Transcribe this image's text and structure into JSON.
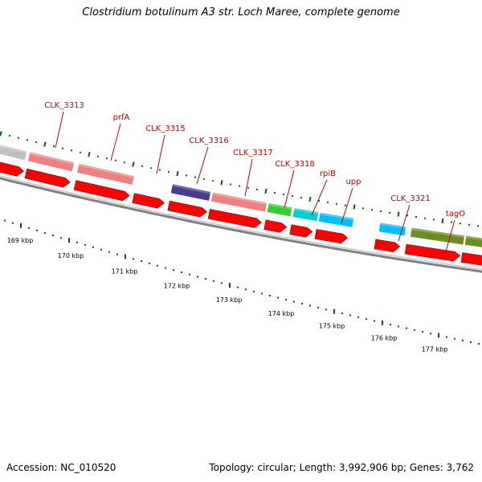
{
  "title": "Clostridium botulinum A3 str. Loch Maree, complete genome",
  "footer": {
    "accession": "Accession: NC_010520",
    "topology": "Topology: circular; Length: 3,992,906 bp; Genes: 3,762"
  },
  "colors": {
    "backbone": "#808080",
    "cds_arrows": "#ff0000",
    "tick_marks": "#006400",
    "gene_labels": "#cc0000"
  },
  "scale": {
    "unit": "kbp",
    "ticks": [
      169,
      170,
      171,
      172,
      173,
      174,
      175,
      176,
      177
    ]
  },
  "genes": [
    {
      "id": "gene-unlabeled-1",
      "name": "",
      "color": "#c0c0c0"
    },
    {
      "id": "gene-clk3313",
      "name": "CLK_3313",
      "color": "#f08080"
    },
    {
      "id": "gene-prfa",
      "name": "prfA",
      "color": "#f08080"
    },
    {
      "id": "gene-clk3315",
      "name": "CLK_3315",
      "color": "#f08080"
    },
    {
      "id": "gene-clk3316",
      "name": "CLK_3316",
      "color": "#483d8b"
    },
    {
      "id": "gene-clk3317",
      "name": "CLK_3317",
      "color": "#f08080"
    },
    {
      "id": "gene-clk3318",
      "name": "CLK_3318",
      "color": "#32cd32"
    },
    {
      "id": "gene-rpib",
      "name": "rpiB",
      "color": "#00ced1"
    },
    {
      "id": "gene-upp",
      "name": "upp",
      "color": "#00bfff"
    },
    {
      "id": "gene-clk3321",
      "name": "CLK_3321",
      "color": "#00bfff"
    },
    {
      "id": "gene-tago",
      "name": "tagO",
      "color": "#6b8e23"
    },
    {
      "id": "gene-unlabeled-2",
      "name": "",
      "color": "#6b8e23"
    }
  ]
}
